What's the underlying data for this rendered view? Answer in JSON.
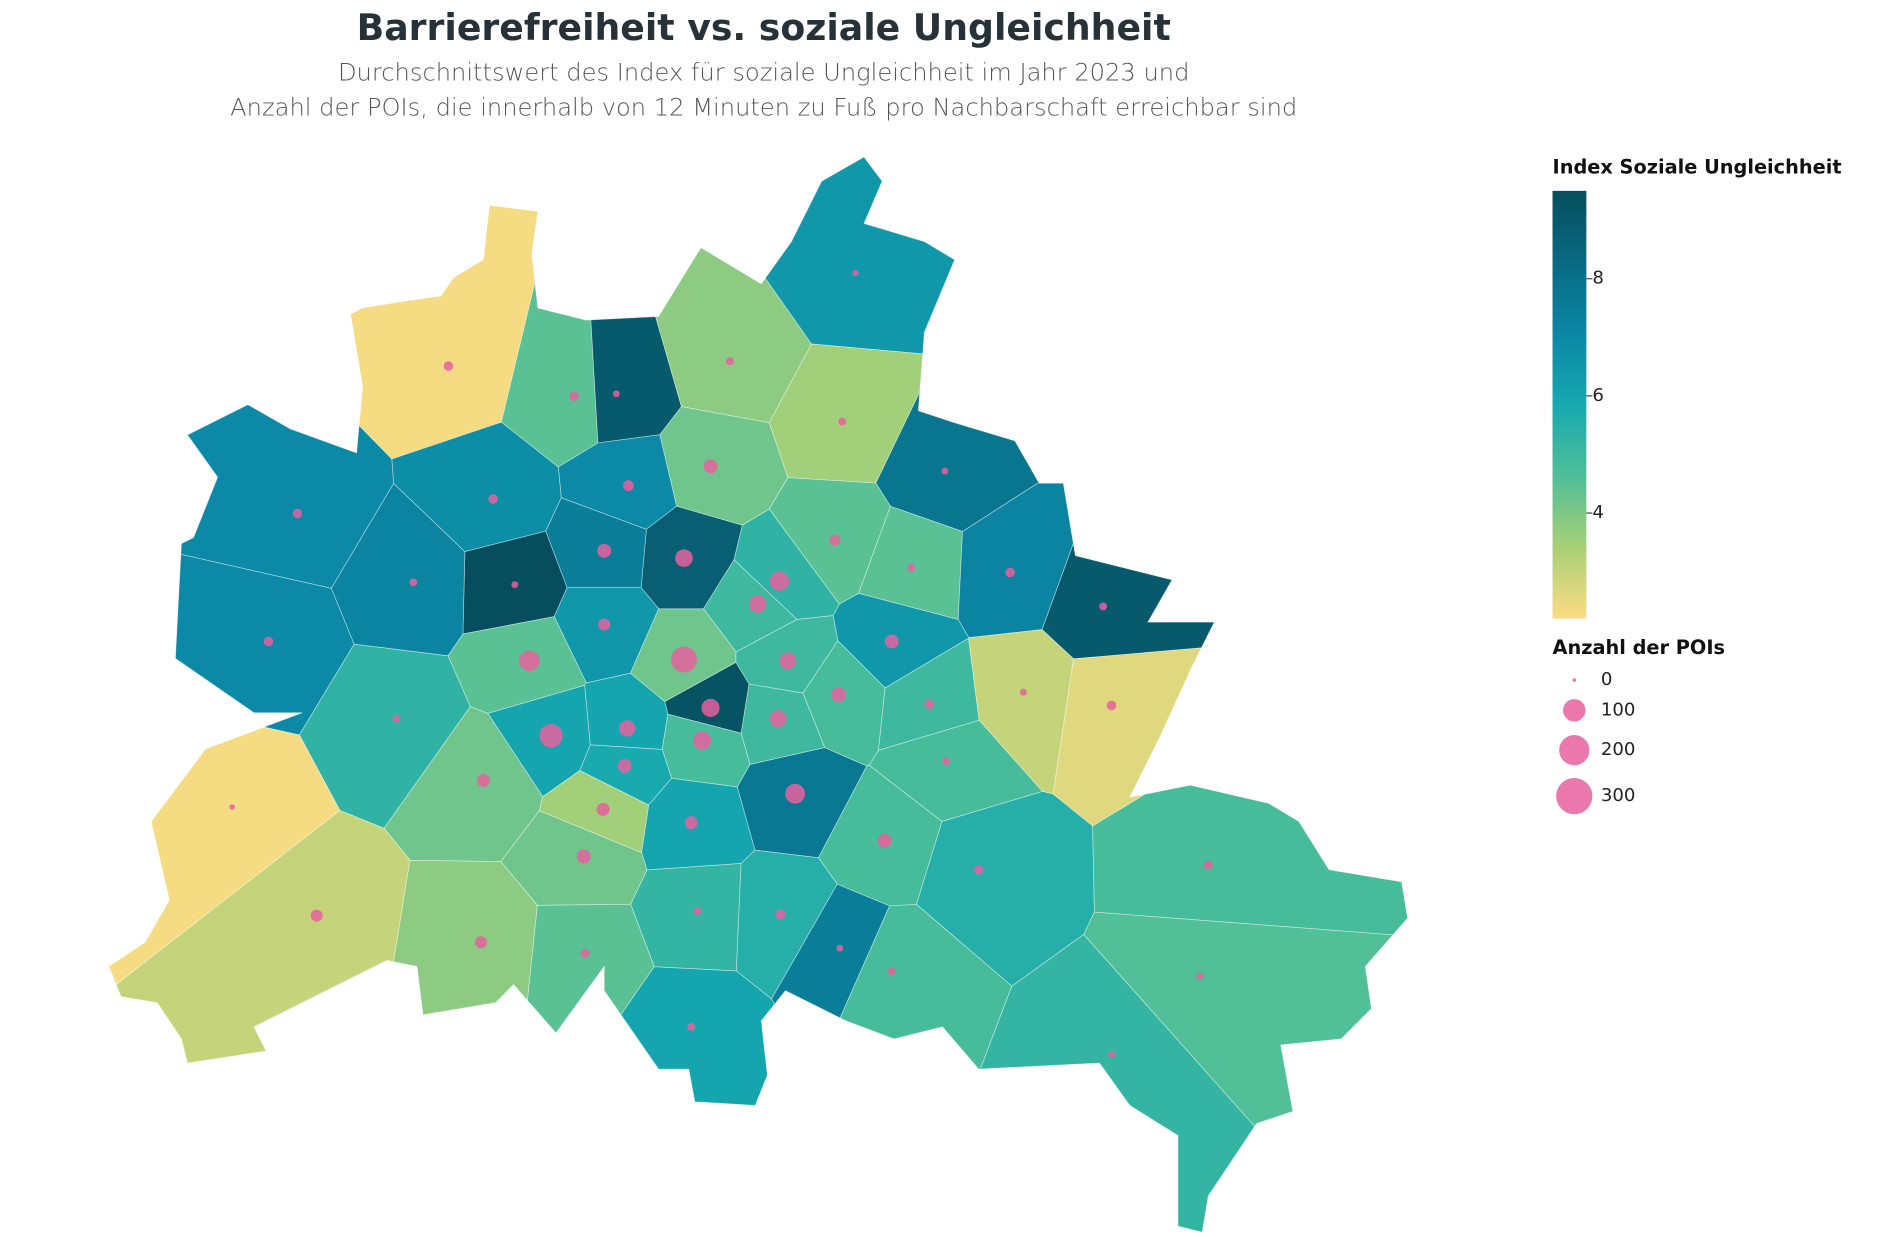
{
  "chart_data": {
    "type": "map",
    "title": "Barrierefreiheit vs. soziale Ungleichheit",
    "subtitle": [
      "Durchschnittswert des Index für soziale Ungleichheit im Jahr 2023 und",
      "Anzahl der POIs, die innerhalb von 12 Minuten zu Fuß pro Nachbarschaft erreichbar sind"
    ],
    "color_legend_title": "Index Soziale Ungleichheit",
    "colorlim": [
      2.2,
      9.5
    ],
    "colorticks": [
      4,
      6,
      8
    ],
    "colorscale": [
      "#fcdc82",
      "#a8d077",
      "#4fbf98",
      "#16a9b0",
      "#0a87a5",
      "#096a82",
      "#064e5d"
    ],
    "size_legend_title": "Anzahl der POIs",
    "size_ticks": [
      0,
      100,
      200,
      300
    ],
    "bubble_color": "#e8609f",
    "regions": [
      {
        "index": 2.3,
        "pois": 10
      },
      {
        "index": 4.5,
        "pois": 10
      },
      {
        "index": 9,
        "pois": 3
      },
      {
        "index": 3.8,
        "pois": 5
      },
      {
        "index": 6.5,
        "pois": 2
      },
      {
        "index": 3.5,
        "pois": 5
      },
      {
        "index": 4.2,
        "pois": 30
      },
      {
        "index": 7,
        "pois": 15
      },
      {
        "index": 6.8,
        "pois": 10
      },
      {
        "index": 7,
        "pois": 10
      },
      {
        "index": 7.8,
        "pois": 3
      },
      {
        "index": 4.5,
        "pois": 15
      },
      {
        "index": 4.5,
        "pois": 5
      },
      {
        "index": 7.2,
        "pois": 10
      },
      {
        "index": 9,
        "pois": 5
      },
      {
        "index": 8.8,
        "pois": 55
      },
      {
        "index": 7.5,
        "pois": 30
      },
      {
        "index": 5.3,
        "pois": 70
      },
      {
        "index": 5,
        "pois": 55
      },
      {
        "index": 9.5,
        "pois": 3
      },
      {
        "index": 7.2,
        "pois": 5
      },
      {
        "index": 7,
        "pois": 10
      },
      {
        "index": 6.5,
        "pois": 20
      },
      {
        "index": 4.2,
        "pois": 140
      },
      {
        "index": 5,
        "pois": 50
      },
      {
        "index": 6.5,
        "pois": 30
      },
      {
        "index": 4.5,
        "pois": 80
      },
      {
        "index": 9.3,
        "pois": 60
      },
      {
        "index": 4.8,
        "pois": 35
      },
      {
        "index": 5,
        "pois": 10
      },
      {
        "index": 3,
        "pois": 3
      },
      {
        "index": 2.6,
        "pois": 10
      },
      {
        "index": 6,
        "pois": 110
      },
      {
        "index": 6,
        "pois": 45
      },
      {
        "index": 4.8,
        "pois": 60
      },
      {
        "index": 5,
        "pois": 50
      },
      {
        "index": 5.3,
        "pois": 5
      },
      {
        "index": 5.8,
        "pois": 30
      },
      {
        "index": 4.2,
        "pois": 25
      },
      {
        "index": 7.7,
        "pois": 75
      },
      {
        "index": 4.8,
        "pois": 5
      },
      {
        "index": 3.5,
        "pois": 25
      },
      {
        "index": 6,
        "pois": 25
      },
      {
        "index": 2.3,
        "pois": 1
      },
      {
        "index": 4.8,
        "pois": 30
      },
      {
        "index": 4.2,
        "pois": 30
      },
      {
        "index": 5.5,
        "pois": 10
      },
      {
        "index": 4.8,
        "pois": 8
      },
      {
        "index": 3,
        "pois": 20
      },
      {
        "index": 3.8,
        "pois": 20
      },
      {
        "index": 5.2,
        "pois": 5
      },
      {
        "index": 5.5,
        "pois": 10
      },
      {
        "index": 4.5,
        "pois": 8
      },
      {
        "index": 7.5,
        "pois": 3
      },
      {
        "index": 4.8,
        "pois": 5
      },
      {
        "index": 4.6,
        "pois": 3
      },
      {
        "index": 6,
        "pois": 5
      },
      {
        "index": 5.2,
        "pois": 3
      }
    ]
  }
}
